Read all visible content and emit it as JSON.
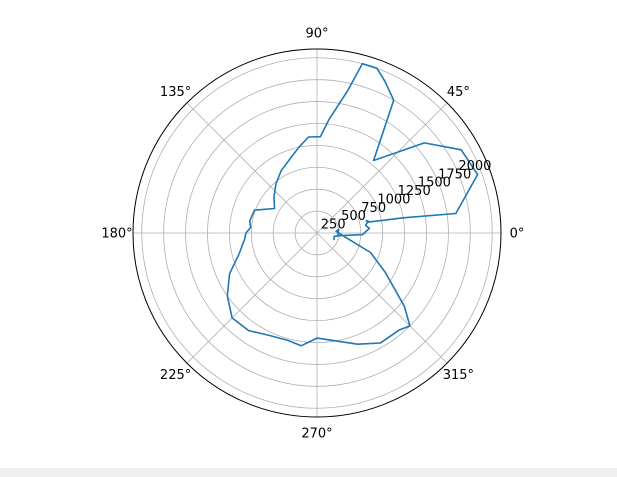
{
  "chart_data": {
    "type": "line",
    "projection": "polar",
    "theta_direction": "counterclockwise",
    "theta_zero": "east",
    "angular_ticks": [
      "0°",
      "45°",
      "90°",
      "135°",
      "180°",
      "225°",
      "270°",
      "315°"
    ],
    "radial_ticks": [
      250,
      500,
      750,
      1000,
      1250,
      1500,
      1750,
      2000
    ],
    "radial_tick_labels": [
      "250",
      "500",
      "750",
      "1000",
      "1250",
      "1500",
      "1750",
      "2000"
    ],
    "rlim": [
      0,
      2100
    ],
    "grid": true,
    "series": [
      {
        "color": "#1f77b4",
        "points_theta_deg": [
          337,
          349,
          354,
          358,
          5,
          9,
          13,
          14,
          12,
          10,
          8,
          20,
          30,
          40,
          52,
          60,
          66,
          70,
          75,
          78,
          84,
          88,
          95,
          102,
          110,
          120,
          130,
          140,
          150,
          160,
          170,
          175,
          180,
          185,
          195,
          205,
          215,
          225,
          235,
          245,
          255,
          262,
          270,
          280,
          290,
          300,
          310,
          315,
          320,
          330,
          340,
          350,
          5,
          10,
          350
        ],
        "points_r": [
          210,
          200,
          280,
          520,
          600,
          560,
          600,
          580,
          600,
          1000,
          1600,
          1950,
          1900,
          1600,
          1050,
          1750,
          1900,
          2000,
          2000,
          1650,
          1300,
          1100,
          1100,
          1000,
          900,
          820,
          730,
          640,
          560,
          760,
          780,
          760,
          810,
          830,
          920,
          1100,
          1250,
          1370,
          1360,
          1290,
          1270,
          1300,
          1200,
          1250,
          1350,
          1450,
          1450,
          1500,
          1300,
          900,
          650,
          350,
          220,
          250,
          240
        ]
      }
    ]
  }
}
